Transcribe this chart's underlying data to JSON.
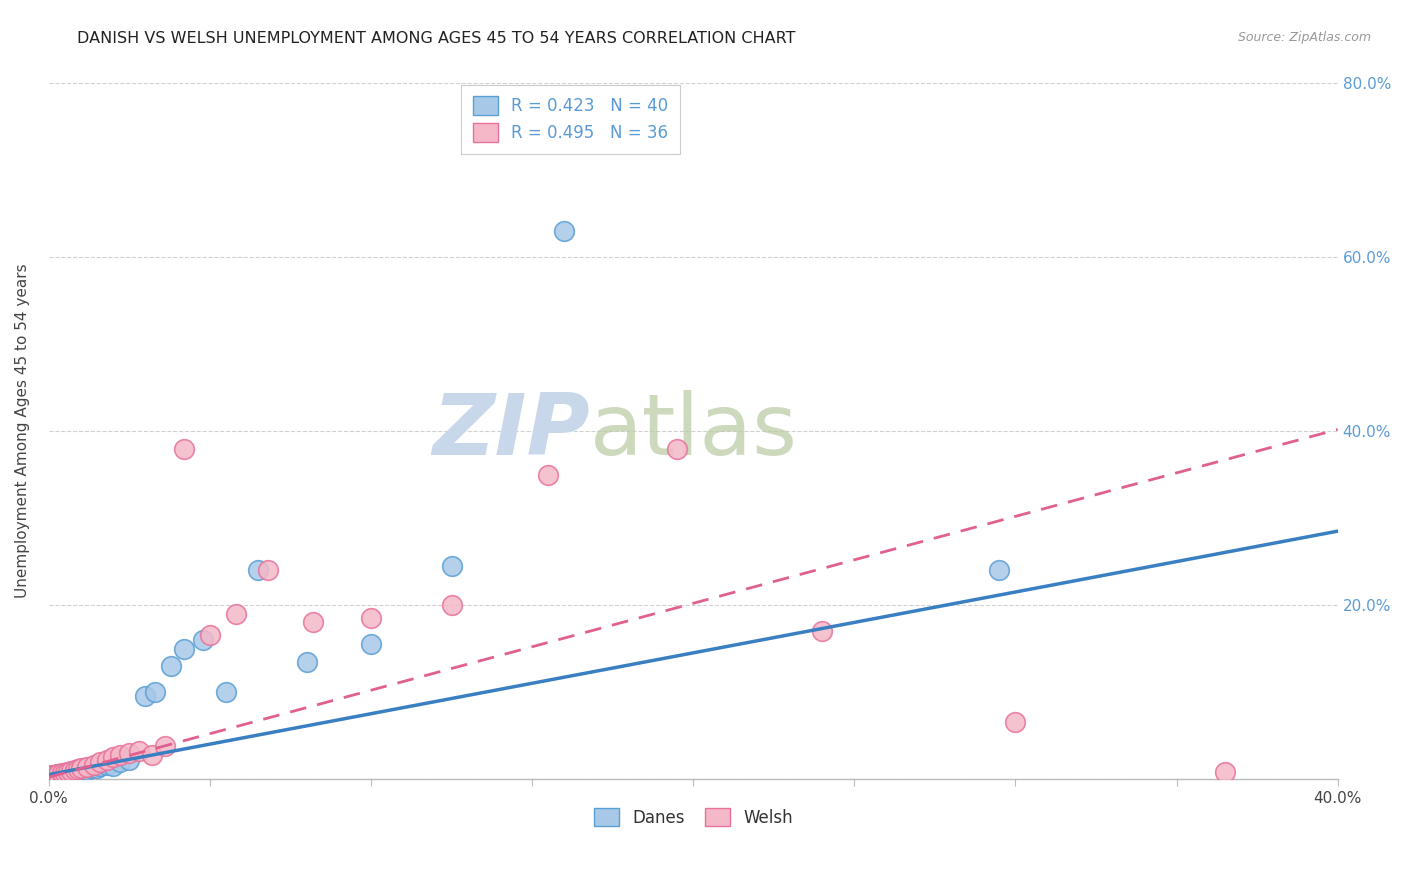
{
  "title": "DANISH VS WELSH UNEMPLOYMENT AMONG AGES 45 TO 54 YEARS CORRELATION CHART",
  "source": "Source: ZipAtlas.com",
  "ylabel": "Unemployment Among Ages 45 to 54 years",
  "xlim": [
    0.0,
    0.4
  ],
  "ylim": [
    0.0,
    0.8
  ],
  "danes_color": "#a8c8e8",
  "welsh_color": "#f4b8c8",
  "danes_edge_color": "#5a9fd4",
  "welsh_edge_color": "#e8729a",
  "danes_line_color": "#3a7fc1",
  "welsh_line_color": "#e06090",
  "tick_label_color": "#5b9bd5",
  "danes_R": 0.423,
  "danes_N": 40,
  "welsh_R": 0.495,
  "welsh_N": 36,
  "watermark_zip": "ZIP",
  "watermark_atlas": "atlas",
  "danes_x": [
    0.001,
    0.001,
    0.001,
    0.002,
    0.002,
    0.002,
    0.003,
    0.003,
    0.003,
    0.004,
    0.004,
    0.005,
    0.005,
    0.006,
    0.006,
    0.007,
    0.008,
    0.009,
    0.01,
    0.011,
    0.012,
    0.013,
    0.015,
    0.016,
    0.018,
    0.02,
    0.022,
    0.025,
    0.03,
    0.033,
    0.038,
    0.042,
    0.048,
    0.055,
    0.065,
    0.08,
    0.1,
    0.125,
    0.16,
    0.295
  ],
  "danes_y": [
    0.002,
    0.003,
    0.004,
    0.003,
    0.004,
    0.005,
    0.004,
    0.005,
    0.006,
    0.005,
    0.006,
    0.006,
    0.007,
    0.007,
    0.008,
    0.008,
    0.009,
    0.008,
    0.01,
    0.012,
    0.01,
    0.013,
    0.013,
    0.015,
    0.016,
    0.015,
    0.02,
    0.022,
    0.095,
    0.1,
    0.13,
    0.15,
    0.16,
    0.1,
    0.24,
    0.135,
    0.155,
    0.245,
    0.63,
    0.24
  ],
  "welsh_x": [
    0.001,
    0.001,
    0.002,
    0.002,
    0.003,
    0.003,
    0.004,
    0.004,
    0.005,
    0.006,
    0.007,
    0.008,
    0.009,
    0.01,
    0.012,
    0.014,
    0.016,
    0.018,
    0.02,
    0.022,
    0.025,
    0.028,
    0.032,
    0.036,
    0.042,
    0.05,
    0.058,
    0.068,
    0.082,
    0.1,
    0.125,
    0.155,
    0.195,
    0.24,
    0.3,
    0.365
  ],
  "welsh_y": [
    0.003,
    0.004,
    0.004,
    0.005,
    0.005,
    0.006,
    0.006,
    0.007,
    0.007,
    0.008,
    0.009,
    0.01,
    0.011,
    0.012,
    0.014,
    0.016,
    0.02,
    0.022,
    0.025,
    0.028,
    0.03,
    0.032,
    0.028,
    0.038,
    0.38,
    0.165,
    0.19,
    0.24,
    0.18,
    0.185,
    0.2,
    0.35,
    0.38,
    0.17,
    0.065,
    0.008
  ]
}
